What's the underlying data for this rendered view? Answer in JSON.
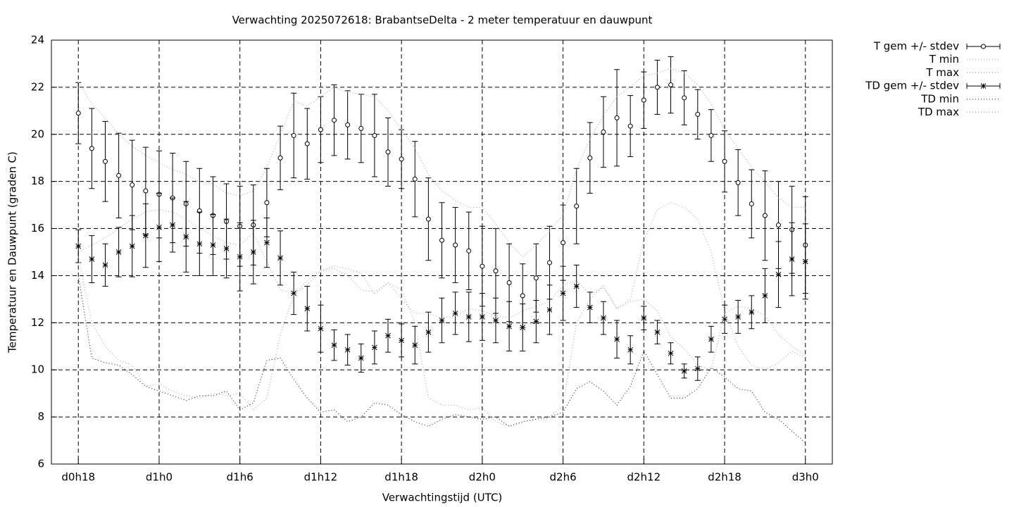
{
  "chart_data": {
    "type": "errorbar",
    "title": "Verwachting 2025072618: BrabantseDelta - 2 meter temperatuur en dauwpunt",
    "x_label": "Verwachtingstijd (UTC)",
    "y_label": "Temperatuur en Dauwpunt (graden C)",
    "x": [
      0,
      1,
      2,
      3,
      4,
      5,
      6,
      7,
      8,
      9,
      10,
      11,
      12,
      13,
      14,
      15,
      16,
      17,
      18,
      19,
      20,
      21,
      22,
      23,
      24,
      25,
      26,
      27,
      28,
      29,
      30,
      31,
      32,
      33,
      34,
      35,
      36,
      37,
      38,
      39,
      40,
      41,
      42,
      43,
      44,
      45,
      46,
      47,
      48,
      49,
      50,
      51,
      52,
      53,
      54
    ],
    "xlim": [
      -2,
      56
    ],
    "xticks": [
      {
        "value": 0,
        "label": "d0h18"
      },
      {
        "value": 6,
        "label": "d1h0"
      },
      {
        "value": 12,
        "label": "d1h6"
      },
      {
        "value": 18,
        "label": "d1h12"
      },
      {
        "value": 24,
        "label": "d1h18"
      },
      {
        "value": 30,
        "label": "d2h0"
      },
      {
        "value": 36,
        "label": "d2h6"
      },
      {
        "value": 42,
        "label": "d2h12"
      },
      {
        "value": 48,
        "label": "d2h18"
      },
      {
        "value": 54,
        "label": "d3h0"
      }
    ],
    "ylim": [
      6,
      24
    ],
    "yticks": [
      6,
      8,
      10,
      12,
      14,
      16,
      18,
      20,
      22,
      24
    ],
    "grid": true,
    "legend": "outside-right",
    "series": [
      {
        "name": "T gem +/- stdev",
        "color": "#000000",
        "style": "errorbars",
        "marker": "circle",
        "values": [
          20.9,
          19.4,
          18.85,
          18.25,
          17.85,
          17.6,
          17.45,
          17.3,
          17.05,
          16.75,
          16.55,
          16.3,
          16.1,
          16.15,
          17.1,
          19.0,
          19.95,
          19.6,
          20.2,
          20.6,
          20.4,
          20.25,
          19.95,
          19.25,
          18.95,
          18.1,
          16.4,
          15.5,
          15.3,
          15.05,
          14.4,
          14.2,
          13.7,
          13.15,
          13.9,
          14.55,
          15.4,
          16.95,
          19.0,
          20.1,
          20.7,
          20.35,
          21.45,
          22.0,
          22.1,
          21.55,
          20.85,
          19.95,
          18.85,
          17.95,
          17.05,
          16.55,
          16.15,
          15.95,
          15.3
        ],
        "errors": [
          1.3,
          1.7,
          1.7,
          1.8,
          1.9,
          1.85,
          1.85,
          1.9,
          1.8,
          1.8,
          1.65,
          1.6,
          1.7,
          1.7,
          1.45,
          1.35,
          1.8,
          1.5,
          1.4,
          1.5,
          1.45,
          1.45,
          1.75,
          1.45,
          1.25,
          1.6,
          1.75,
          1.6,
          1.6,
          1.65,
          1.7,
          1.8,
          1.65,
          1.35,
          1.45,
          1.55,
          1.6,
          1.6,
          1.5,
          1.5,
          2.05,
          1.3,
          1.2,
          1.15,
          1.2,
          1.15,
          1.05,
          1.1,
          1.3,
          1.4,
          1.45,
          1.9,
          1.85,
          1.85,
          2.05
        ]
      },
      {
        "name": "T min",
        "color": "#aaaaaa",
        "style": "dotted",
        "values": [
          15.0,
          15.3,
          15.6,
          16.0,
          16.4,
          16.7,
          16.8,
          16.7,
          16.4,
          16.0,
          15.7,
          15.4,
          15.3,
          15.8,
          14.6,
          13.4,
          13.2,
          13.8,
          14.2,
          14.4,
          14.3,
          14.1,
          13.2,
          13.7,
          13.4,
          12.0,
          8.8,
          8.5,
          8.5,
          8.3,
          8.4,
          7.8,
          7.6,
          7.8,
          7.9,
          8.0,
          8.5,
          12.0,
          13.0,
          13.6,
          12.6,
          13.0,
          15.5,
          16.8,
          17.1,
          16.9,
          16.4,
          15.0,
          12.5,
          11.0,
          10.2,
          10.0,
          10.3,
          10.8,
          10.5
        ]
      },
      {
        "name": "T max",
        "color": "#aaaaaa",
        "style": "dotted",
        "values": [
          22.2,
          21.3,
          20.7,
          20.0,
          19.5,
          19.1,
          18.8,
          18.5,
          18.3,
          18.0,
          17.9,
          17.5,
          17.4,
          17.6,
          18.6,
          20.0,
          21.4,
          21.2,
          21.6,
          22.0,
          21.8,
          21.7,
          21.6,
          21.0,
          20.2,
          19.4,
          18.3,
          17.6,
          17.2,
          16.9,
          16.9,
          16.2,
          15.4,
          14.8,
          15.3,
          15.9,
          16.6,
          18.5,
          19.8,
          20.8,
          21.6,
          22.0,
          22.5,
          22.6,
          22.8,
          22.6,
          22.1,
          21.3,
          20.2,
          19.4,
          18.6,
          18.0,
          17.3,
          16.9,
          16.9
        ]
      },
      {
        "name": "TD gem +/- stdev",
        "color": "#000000",
        "style": "errorbars",
        "marker": "star",
        "values": [
          15.25,
          14.7,
          14.45,
          15.0,
          15.25,
          15.7,
          16.05,
          16.15,
          15.65,
          15.35,
          15.3,
          15.15,
          14.8,
          15.0,
          15.4,
          14.75,
          13.25,
          12.6,
          11.75,
          11.05,
          10.85,
          10.5,
          10.95,
          11.45,
          11.25,
          11.05,
          11.6,
          12.1,
          12.4,
          12.25,
          12.25,
          12.1,
          11.85,
          11.8,
          12.05,
          12.55,
          13.25,
          13.55,
          12.65,
          12.2,
          11.3,
          10.85,
          12.2,
          11.6,
          10.7,
          9.95,
          10.05,
          11.3,
          12.15,
          12.25,
          12.45,
          13.15,
          14.05,
          14.7,
          14.6
        ],
        "errors": [
          0.7,
          1.0,
          0.9,
          1.05,
          1.3,
          1.35,
          1.45,
          1.15,
          1.5,
          1.35,
          1.3,
          1.25,
          1.45,
          1.35,
          1.05,
          1.15,
          0.9,
          0.95,
          1.0,
          0.65,
          0.65,
          0.6,
          0.7,
          0.7,
          0.7,
          0.8,
          0.85,
          0.95,
          0.9,
          1.05,
          1.0,
          0.95,
          1.05,
          1.0,
          0.9,
          1.05,
          1.15,
          0.9,
          0.65,
          0.7,
          0.8,
          0.6,
          0.5,
          0.5,
          0.45,
          0.3,
          0.5,
          0.55,
          0.6,
          0.7,
          0.7,
          1.15,
          1.4,
          1.55,
          1.6
        ]
      },
      {
        "name": "TD min",
        "color": "#333333",
        "style": "dotted",
        "values": [
          14.0,
          10.5,
          10.3,
          10.2,
          9.8,
          9.3,
          9.1,
          8.9,
          8.7,
          8.9,
          8.9,
          9.1,
          8.3,
          8.6,
          10.4,
          10.5,
          9.6,
          8.8,
          8.2,
          8.3,
          7.8,
          8.0,
          8.6,
          8.5,
          8.1,
          7.8,
          7.6,
          7.9,
          8.1,
          8.0,
          7.9,
          8.0,
          7.6,
          7.8,
          7.9,
          8.0,
          8.2,
          9.2,
          9.5,
          9.1,
          8.5,
          9.3,
          10.8,
          9.8,
          8.8,
          8.8,
          9.2,
          10.1,
          9.7,
          9.2,
          9.1,
          8.2,
          7.9,
          7.4,
          6.9
        ]
      },
      {
        "name": "TD max",
        "color": "#aaaaaa",
        "style": "dotted",
        "values": [
          14.8,
          12.0,
          11.0,
          10.4,
          10.2,
          9.3,
          9.4,
          9.1,
          8.9,
          8.8,
          9.0,
          8.9,
          9.0,
          8.3,
          8.8,
          11.5,
          13.2,
          13.6,
          14.2,
          14.3,
          14.0,
          13.4,
          13.3,
          13.7,
          13.0,
          12.4,
          12.4,
          12.2,
          12.3,
          12.6,
          12.5,
          12.3,
          12.2,
          12.5,
          12.7,
          12.9,
          13.6,
          13.8,
          13.2,
          13.5,
          12.6,
          12.9,
          13.0,
          12.5,
          11.4,
          10.9,
          10.2,
          10.0,
          12.4,
          12.7,
          12.6,
          12.3,
          11.5,
          11.0,
          10.6
        ]
      }
    ]
  }
}
